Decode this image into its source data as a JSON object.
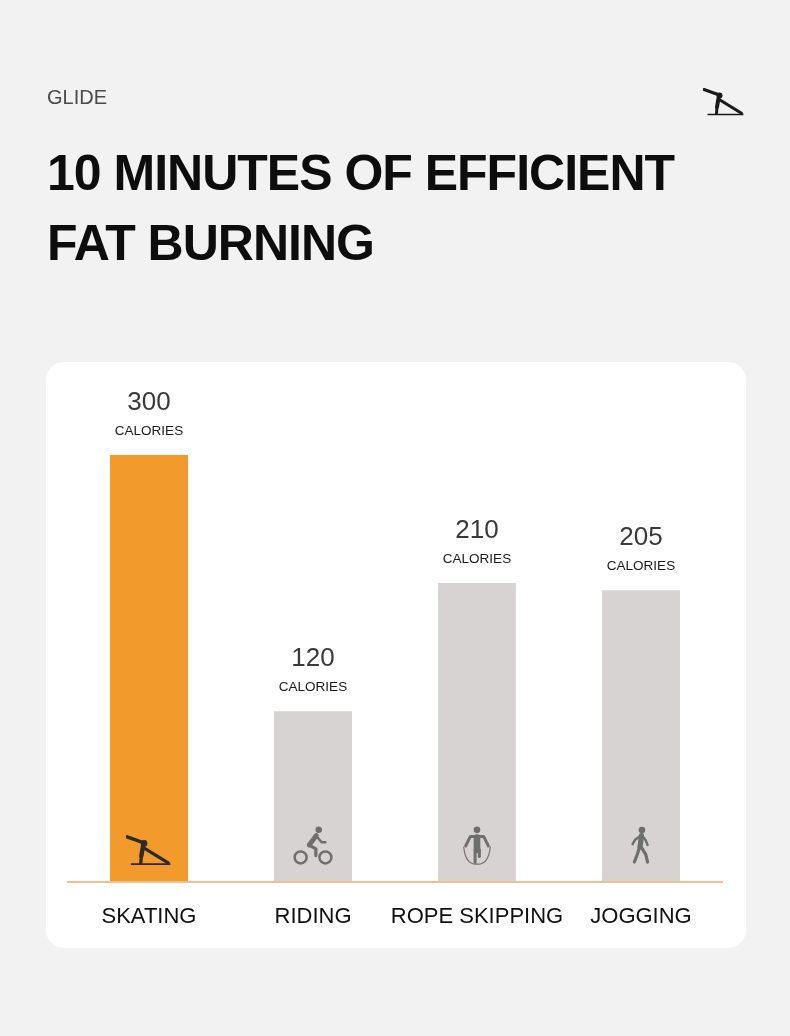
{
  "chart_data": {
    "type": "bar",
    "subtitle": "GLIDE",
    "title": "10 MINUTES OF EFFICIENT FAT BURNING",
    "categories": [
      "SKATING",
      "RIDING",
      "ROPE SKIPPING",
      "JOGGING"
    ],
    "values": [
      300,
      120,
      210,
      205
    ],
    "colors": [
      "#f39a2c",
      "#d6d3d2",
      "#d6d3d2",
      "#d6d3d2"
    ],
    "value_labels": [
      "300\nCALORIES",
      "120\nCALORIES",
      "210\nCALORIES",
      "205\nCALORIES"
    ]
  }
}
